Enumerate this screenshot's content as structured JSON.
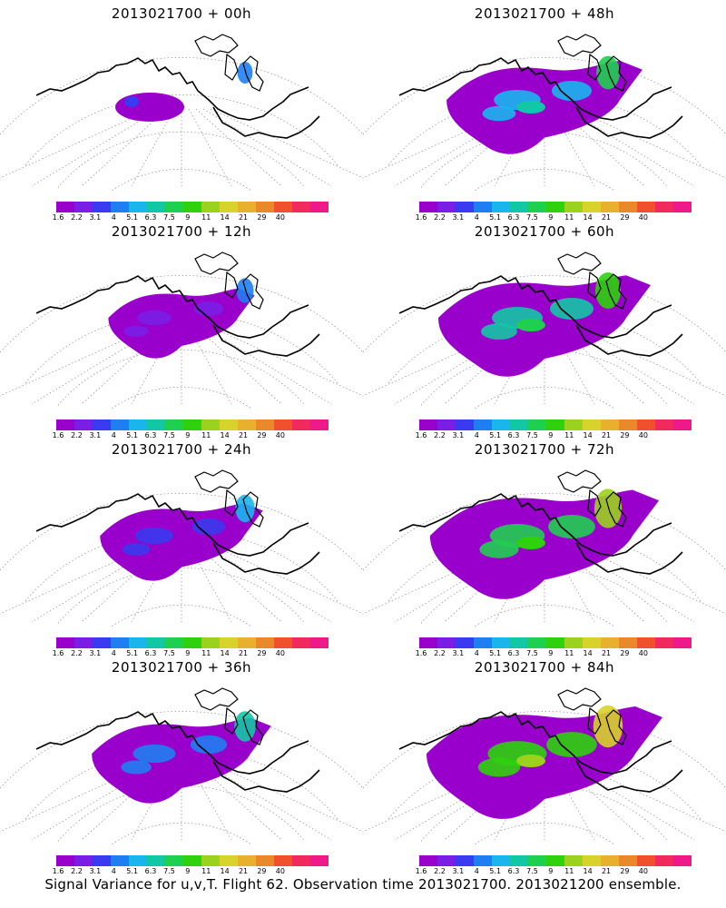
{
  "palette": [
    "#9900cc",
    "#7a1ee6",
    "#3a3af0",
    "#1f7ff2",
    "#19b6ee",
    "#12c7a6",
    "#1fcf50",
    "#2ed10c",
    "#9bd21e",
    "#d8d22a",
    "#e8b02c",
    "#e88a2a",
    "#f0502c",
    "#f02a5a",
    "#ee1a8a"
  ],
  "colorbar_labels": [
    "1.6",
    "2.2",
    "3.1",
    "4",
    "5.1",
    "6.3",
    "7.5",
    "9",
    "11",
    "14",
    "21",
    "29",
    "40"
  ],
  "panels": [
    {
      "title": "2013021700 + 00h",
      "intensity": 0
    },
    {
      "title": "2013021700 + 48h",
      "intensity": 4
    },
    {
      "title": "2013021700 + 12h",
      "intensity": 1
    },
    {
      "title": "2013021700 + 60h",
      "intensity": 5
    },
    {
      "title": "2013021700 + 24h",
      "intensity": 2
    },
    {
      "title": "2013021700 + 72h",
      "intensity": 6
    },
    {
      "title": "2013021700 + 36h",
      "intensity": 3
    },
    {
      "title": "2013021700 + 84h",
      "intensity": 7
    }
  ],
  "caption": "Signal Variance for u,v,T. Flight 62. Observation time 2013021700. 2013021200 ensemble."
}
